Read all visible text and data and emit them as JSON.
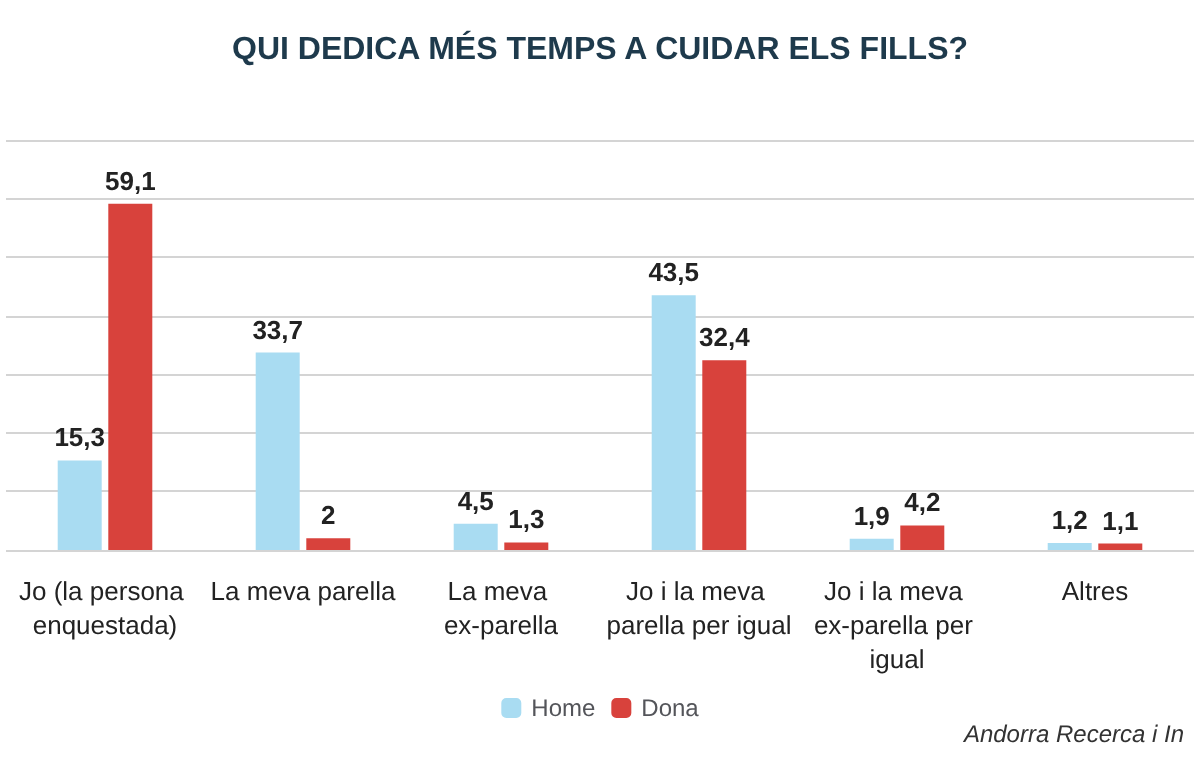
{
  "chart_data": {
    "type": "bar",
    "title": "QUI DEDICA MÉS TEMPS A CUIDAR ELS FILLS?",
    "categories": [
      "Jo (la persona enquestada)",
      "La meva parella",
      "La meva ex-parella",
      "Jo i la meva parella per igual",
      "Jo i la meva ex-parella per igual",
      "Altres"
    ],
    "series": [
      {
        "name": "Home",
        "color": "#a9dcf2",
        "values": [
          15.3,
          33.7,
          4.5,
          43.5,
          1.9,
          1.2
        ],
        "value_labels": [
          "15,3",
          "33,7",
          "4,5",
          "43,5",
          "1,9",
          "1,2"
        ]
      },
      {
        "name": "Dona",
        "color": "#d8423c",
        "values": [
          59.1,
          2,
          1.3,
          32.4,
          4.2,
          1.1
        ],
        "value_labels": [
          "59,1",
          "2",
          "1,3",
          "32,4",
          "4,2",
          "1,1"
        ]
      }
    ],
    "ylim": [
      0,
      70
    ],
    "yticks": [
      {
        "value": 0,
        "label": null
      },
      {
        "value": 10,
        "label": null
      },
      {
        "value": 20,
        "label": null
      },
      {
        "value": 30,
        "label": null
      },
      {
        "value": 40,
        "label": null
      },
      {
        "value": 50,
        "label": null
      },
      {
        "value": 60,
        "label": null
      },
      {
        "value": 70,
        "label": null
      }
    ],
    "tick_labels": "x",
    "grid": "y",
    "legend": "bottom",
    "annotations": [
      "Andorra Recerca i In"
    ]
  }
}
